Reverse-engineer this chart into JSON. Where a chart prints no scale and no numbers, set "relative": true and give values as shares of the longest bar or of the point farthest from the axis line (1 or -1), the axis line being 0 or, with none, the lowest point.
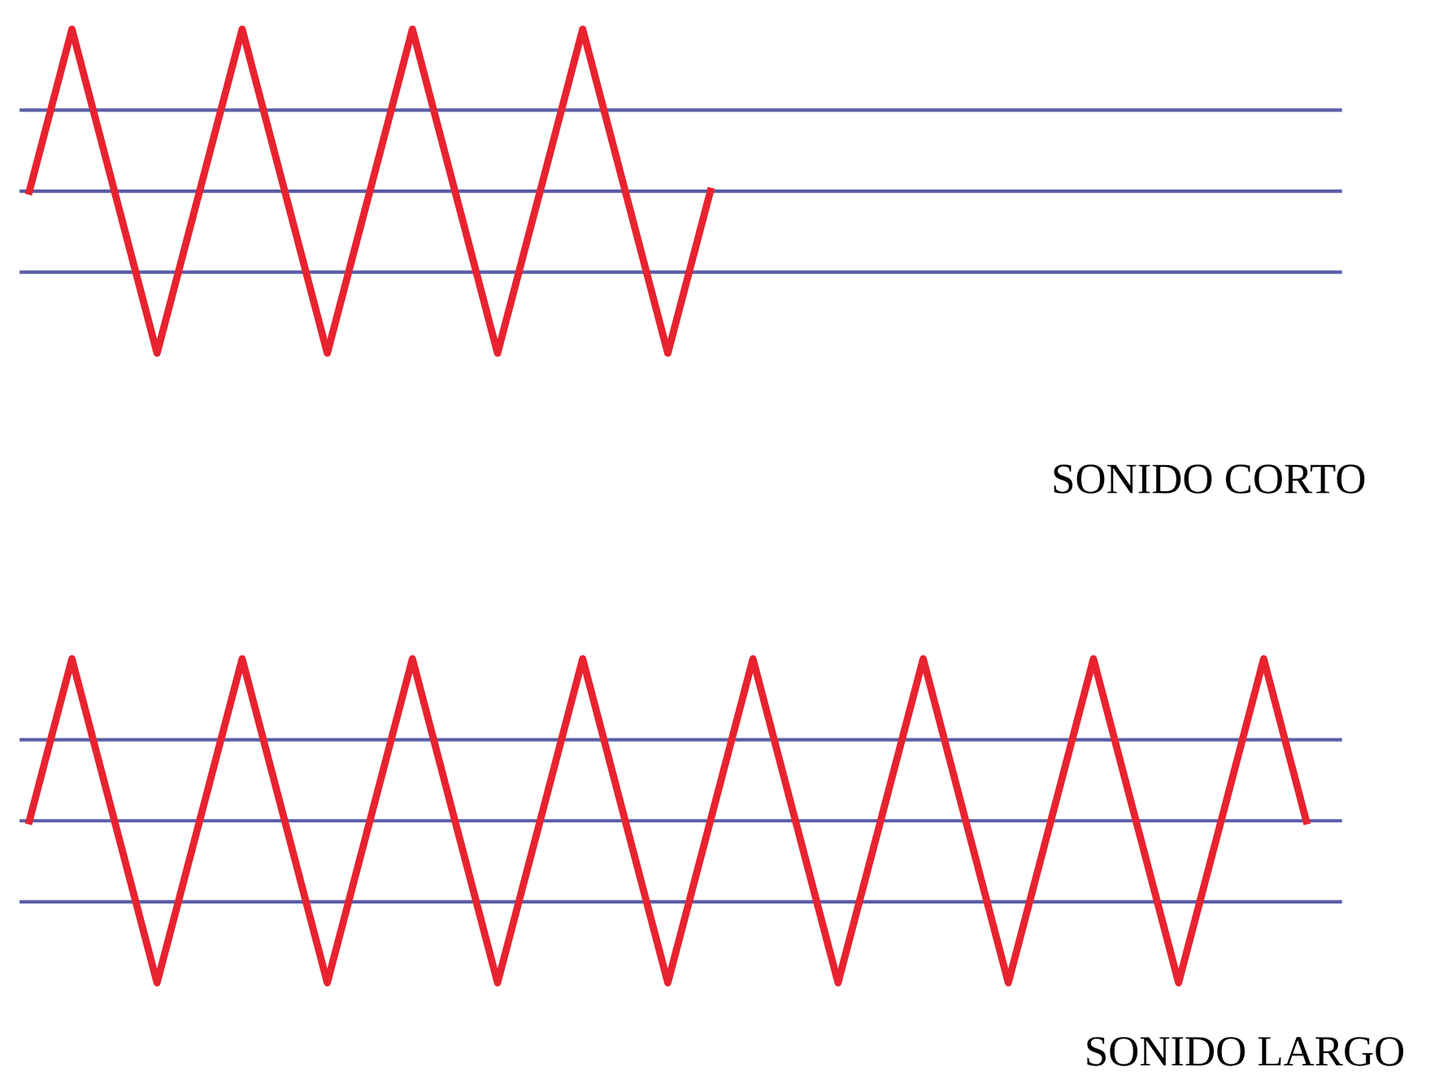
{
  "chart_data": [
    {
      "type": "line",
      "relative": true,
      "categories": [
        null,
        null,
        null,
        null,
        null,
        null,
        null,
        null,
        null,
        null,
        null,
        null,
        null,
        null,
        null,
        null,
        null,
        null,
        null,
        null,
        null,
        null,
        null,
        null,
        null,
        null,
        null,
        null,
        null,
        null,
        null
      ],
      "series": [
        {
          "color": "#e8232f",
          "values": [
            0,
            1,
            0,
            -1,
            0,
            1,
            0,
            -1,
            0,
            1,
            0,
            -1,
            0,
            1,
            0,
            -1,
            0,
            null,
            null,
            null,
            null,
            null,
            null,
            null,
            null,
            null,
            null,
            null,
            null,
            null,
            null
          ]
        }
      ],
      "ref_lines": [
        {
          "axis": "y",
          "value": 0.5,
          "color": "#5b5ea8"
        },
        {
          "axis": "y",
          "value": 0,
          "color": "#5b5ea8"
        },
        {
          "axis": "y",
          "value": -0.5,
          "color": "#5b5ea8"
        }
      ],
      "annotations": [
        "SONIDO CORTO"
      ],
      "marker": "none",
      "line_style": "solid"
    },
    {
      "type": "line",
      "relative": true,
      "categories": [
        null,
        null,
        null,
        null,
        null,
        null,
        null,
        null,
        null,
        null,
        null,
        null,
        null,
        null,
        null,
        null,
        null,
        null,
        null,
        null,
        null,
        null,
        null,
        null,
        null,
        null,
        null,
        null,
        null,
        null,
        null
      ],
      "series": [
        {
          "color": "#e8232f",
          "values": [
            0,
            1,
            0,
            -1,
            0,
            1,
            0,
            -1,
            0,
            1,
            0,
            -1,
            0,
            1,
            0,
            -1,
            0,
            1,
            0,
            -1,
            0,
            1,
            0,
            -1,
            0,
            1,
            0,
            -1,
            0,
            1,
            0
          ]
        }
      ],
      "ref_lines": [
        {
          "axis": "y",
          "value": 0.5,
          "color": "#5b5ea8"
        },
        {
          "axis": "y",
          "value": 0,
          "color": "#5b5ea8"
        },
        {
          "axis": "y",
          "value": -0.5,
          "color": "#5b5ea8"
        }
      ],
      "annotations": [
        "SONIDO LARGO"
      ],
      "marker": "none",
      "line_style": "solid"
    }
  ]
}
